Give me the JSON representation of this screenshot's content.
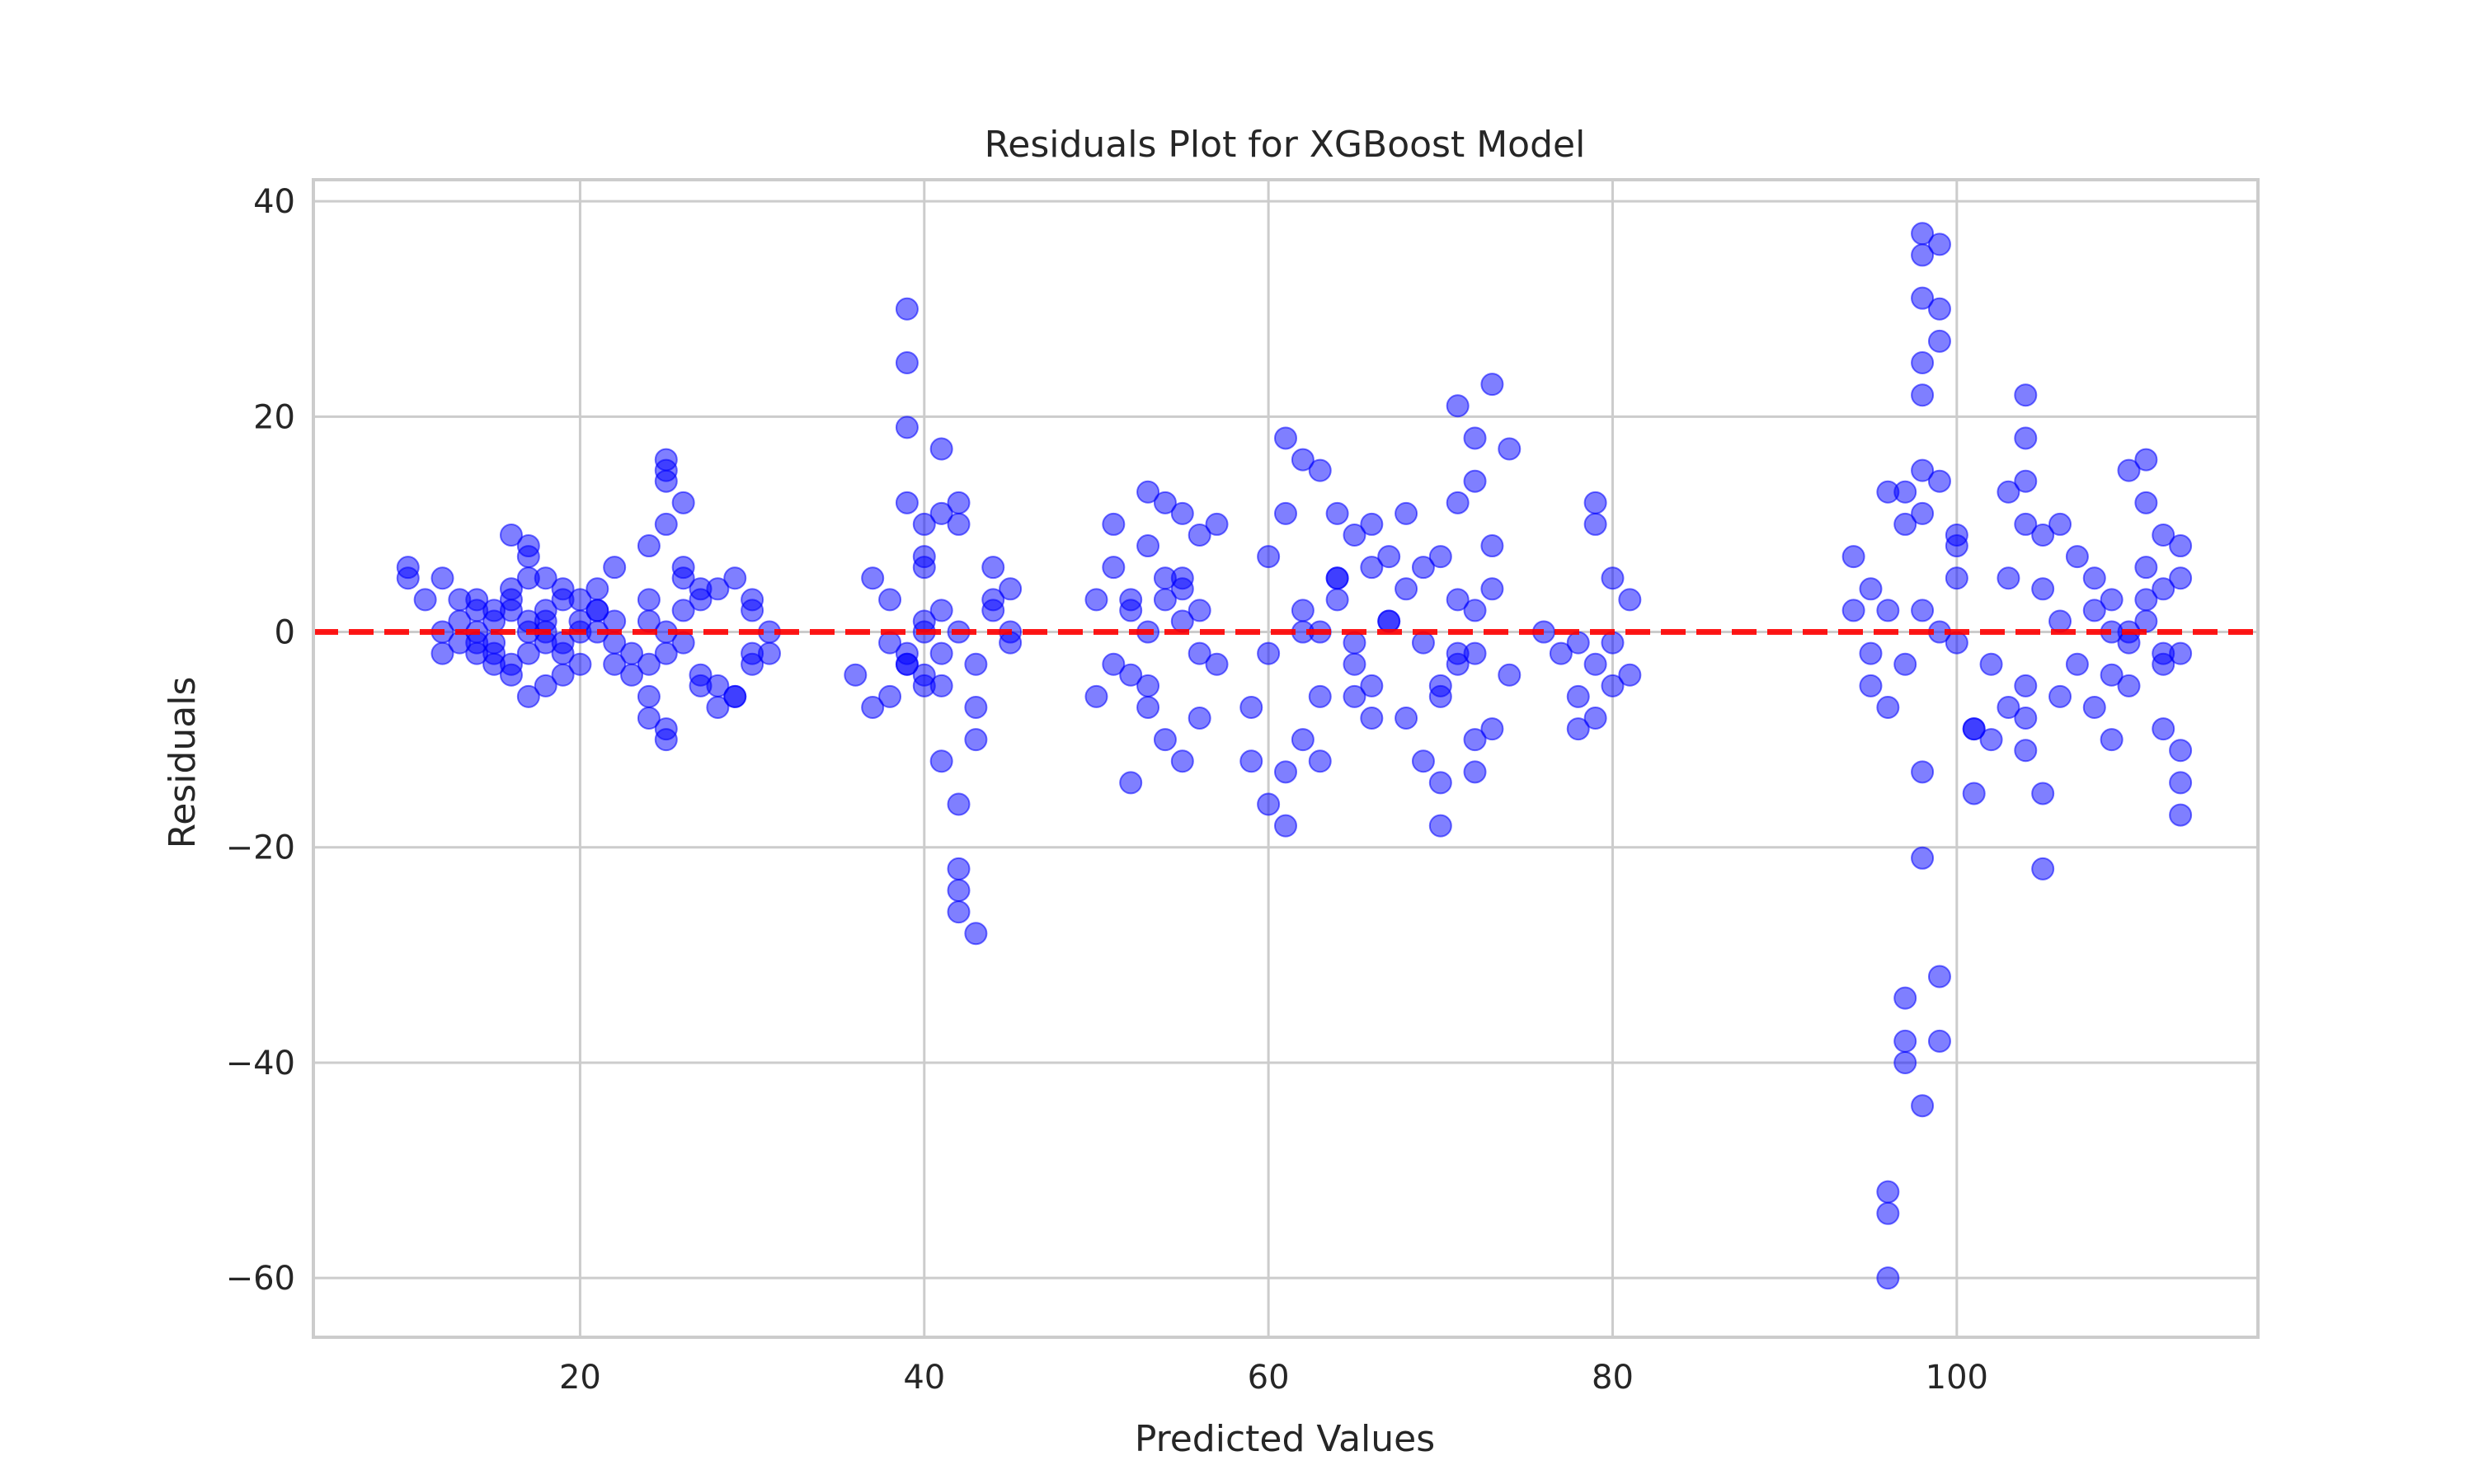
{
  "chart_data": {
    "type": "scatter",
    "title": "Residuals Plot for XGBoost Model",
    "xlabel": "Predicted Values",
    "ylabel": "Residuals",
    "xlim": [
      4.5,
      117.5
    ],
    "ylim": [
      -65.5,
      42
    ],
    "xticks": [
      20,
      40,
      60,
      80,
      100
    ],
    "yticks": [
      -60,
      -40,
      -20,
      0,
      20,
      40
    ],
    "xtick_labels": [
      "20",
      "40",
      "60",
      "80",
      "100"
    ],
    "ytick_labels": [
      "−60",
      "−40",
      "−20",
      "0",
      "20",
      "40"
    ],
    "grid": true,
    "reference_line": {
      "y": 0,
      "color": "#ff0000",
      "style": "dashed"
    },
    "point_color": "#0000ff",
    "point_alpha": 0.5,
    "series": [
      {
        "x": [
          10.0,
          10.0,
          11.0,
          12.0,
          12.0,
          13.0,
          14.0,
          15.0,
          12.0,
          13.0,
          14.0,
          15.0,
          16.0,
          16.0,
          17.0,
          17.0,
          17.0,
          18.0,
          18.0,
          19.0,
          20.0,
          21.0,
          22.0,
          22.0,
          23.0,
          13.0,
          14.0,
          15.0,
          16.0,
          17.0,
          18.0,
          19.0,
          20.0,
          21.0,
          22.0,
          23.0,
          14.0,
          15.0,
          16.0,
          17.0,
          18.0,
          19.0,
          20.0,
          21.0,
          15.0,
          16.0,
          17.0,
          18.0,
          19.0,
          20.0,
          14.0,
          16.0,
          17.0,
          18.0,
          19.0,
          21.0,
          22.0,
          24.0,
          24.0,
          25.0,
          25.0,
          26.0,
          26.0,
          24.0,
          25.0,
          26.0,
          27.0,
          28.0,
          29.0,
          30.0,
          24.0,
          25.0,
          26.0,
          27.0,
          28.0,
          29.0,
          30.0,
          31.0,
          25.0,
          27.0,
          29.0,
          30.0,
          31.0,
          24.0,
          25.0,
          28.0,
          30.0,
          25.0,
          26.0,
          27.0,
          24.0,
          25.0,
          36.0,
          37.0,
          37.0,
          38.0,
          38.0,
          39.0,
          39.0,
          39.0,
          39.0,
          39.0,
          40.0,
          40.0,
          40.0,
          40.0,
          41.0,
          41.0,
          41.0,
          41.0,
          42.0,
          42.0,
          42.0,
          42.0,
          42.0,
          42.0,
          43.0,
          43.0,
          43.0,
          44.0,
          44.0,
          44.0,
          45.0,
          45.0,
          45.0,
          39.0,
          40.0,
          41.0,
          39.0,
          40.0,
          38.0,
          40.0,
          42.0,
          43.0,
          41.0,
          50.0,
          50.0,
          51.0,
          51.0,
          51.0,
          52.0,
          52.0,
          52.0,
          53.0,
          53.0,
          53.0,
          54.0,
          54.0,
          54.0,
          55.0,
          55.0,
          55.0,
          56.0,
          56.0,
          56.0,
          57.0,
          52.0,
          53.0,
          54.0,
          55.0,
          56.0,
          53.0,
          55.0,
          57.0,
          59.0,
          59.0,
          60.0,
          60.0,
          60.0,
          61.0,
          61.0,
          61.0,
          61.0,
          62.0,
          62.0,
          62.0,
          63.0,
          63.0,
          63.0,
          64.0,
          64.0,
          64.0,
          65.0,
          65.0,
          65.0,
          66.0,
          66.0,
          66.0,
          67.0,
          67.0,
          68.0,
          68.0,
          69.0,
          69.0,
          69.0,
          70.0,
          70.0,
          70.0,
          70.0,
          71.0,
          71.0,
          71.0,
          72.0,
          72.0,
          72.0,
          73.0,
          73.0,
          73.0,
          74.0,
          74.0,
          71.0,
          72.0,
          73.0,
          70.0,
          71.0,
          72.0,
          63.0,
          64.0,
          66.0,
          67.0,
          62.0,
          65.0,
          68.0,
          72.0,
          76.0,
          77.0,
          78.0,
          78.0,
          79.0,
          79.0,
          79.0,
          80.0,
          80.0,
          81.0,
          81.0,
          78.0,
          80.0,
          79.0,
          94.0,
          94.0,
          95.0,
          95.0,
          95.0,
          96.0,
          96.0,
          96.0,
          96.0,
          96.0,
          96.0,
          97.0,
          97.0,
          97.0,
          97.0,
          97.0,
          98.0,
          98.0,
          98.0,
          98.0,
          98.0,
          98.0,
          98.0,
          98.0,
          98.0,
          98.0,
          98.0,
          99.0,
          99.0,
          99.0,
          99.0,
          99.0,
          99.0,
          100.0,
          100.0,
          100.0,
          100.0,
          101.0,
          101.0,
          102.0,
          102.0,
          103.0,
          103.0,
          103.0,
          104.0,
          104.0,
          104.0,
          104.0,
          104.0,
          104.0,
          105.0,
          105.0,
          105.0,
          105.0,
          106.0,
          106.0,
          106.0,
          107.0,
          107.0,
          108.0,
          108.0,
          108.0,
          109.0,
          109.0,
          109.0,
          110.0,
          110.0,
          110.0,
          111.0,
          111.0,
          111.0,
          111.0,
          112.0,
          112.0,
          112.0,
          112.0,
          113.0,
          113.0,
          113.0,
          113.0,
          113.0,
          110.0,
          111.0,
          112.0,
          113.0,
          97.0,
          99.0,
          101.0,
          104.0,
          109.0
        ],
        "y": [
          6.0,
          5.0,
          3.0,
          5.0,
          -2.0,
          3.0,
          2.0,
          1.0,
          0.0,
          -1.0,
          -2.0,
          -3.0,
          -4.0,
          9.0,
          8.0,
          7.0,
          -6.0,
          5.0,
          -5.0,
          4.0,
          3.0,
          2.0,
          6.0,
          -3.0,
          -4.0,
          1.0,
          0.0,
          -1.0,
          2.0,
          1.0,
          0.0,
          -1.0,
          1.0,
          0.0,
          1.0,
          -2.0,
          -1.0,
          2.0,
          3.0,
          -2.0,
          2.0,
          3.0,
          -3.0,
          2.0,
          -2.0,
          -3.0,
          0.0,
          -1.0,
          -2.0,
          0.0,
          3.0,
          4.0,
          5.0,
          1.0,
          -4.0,
          4.0,
          -1.0,
          3.0,
          -8.0,
          16.0,
          10.0,
          6.0,
          5.0,
          1.0,
          0.0,
          2.0,
          3.0,
          4.0,
          5.0,
          3.0,
          -3.0,
          -2.0,
          -1.0,
          -4.0,
          -5.0,
          -6.0,
          -3.0,
          -2.0,
          14.0,
          -5.0,
          -6.0,
          -2.0,
          0.0,
          -6.0,
          -9.0,
          -7.0,
          2.0,
          15.0,
          12.0,
          4.0,
          8.0,
          -10.0,
          -4.0,
          -7.0,
          5.0,
          3.0,
          -6.0,
          30.0,
          25.0,
          19.0,
          12.0,
          -3.0,
          10.0,
          6.0,
          0.0,
          -5.0,
          17.0,
          -12.0,
          11.0,
          -5.0,
          -16.0,
          12.0,
          10.0,
          -22.0,
          -24.0,
          -26.0,
          -28.0,
          -7.0,
          -10.0,
          2.0,
          6.0,
          3.0,
          -1.0,
          4.0,
          0.0,
          -3.0,
          7.0,
          2.0,
          -2.0,
          1.0,
          -1.0,
          -4.0,
          0.0,
          -3.0,
          -2.0,
          3.0,
          -6.0,
          -3.0,
          10.0,
          6.0,
          3.0,
          -14.0,
          2.0,
          13.0,
          8.0,
          -7.0,
          12.0,
          -10.0,
          5.0,
          11.0,
          -12.0,
          4.0,
          9.0,
          -8.0,
          2.0,
          10.0,
          -4.0,
          0.0,
          3.0,
          5.0,
          -2.0,
          -5.0,
          1.0,
          -3.0,
          -7.0,
          -12.0,
          7.0,
          -2.0,
          -16.0,
          -13.0,
          18.0,
          11.0,
          -18.0,
          16.0,
          0.0,
          -10.0,
          -6.0,
          15.0,
          -12.0,
          5.0,
          11.0,
          3.0,
          -6.0,
          9.0,
          -3.0,
          6.0,
          10.0,
          -5.0,
          1.0,
          7.0,
          -8.0,
          11.0,
          6.0,
          -12.0,
          -1.0,
          -14.0,
          7.0,
          -18.0,
          -6.0,
          21.0,
          12.0,
          -3.0,
          -13.0,
          18.0,
          14.0,
          -9.0,
          23.0,
          8.0,
          -4.0,
          17.0,
          3.0,
          -10.0,
          4.0,
          -5.0,
          -2.0,
          2.0,
          0.0,
          5.0,
          -8.0,
          1.0,
          2.0,
          -1.0,
          4.0,
          -2.0,
          0.0,
          -2.0,
          -1.0,
          -6.0,
          12.0,
          -8.0,
          10.0,
          5.0,
          -1.0,
          3.0,
          -4.0,
          -9.0,
          -5.0,
          -3.0,
          2.0,
          7.0,
          -2.0,
          4.0,
          -5.0,
          13.0,
          2.0,
          -7.0,
          -54.0,
          -60.0,
          -52.0,
          -3.0,
          13.0,
          -34.0,
          -38.0,
          10.0,
          2.0,
          -44.0,
          37.0,
          35.0,
          31.0,
          25.0,
          22.0,
          15.0,
          11.0,
          -13.0,
          -21.0,
          -32.0,
          -38.0,
          36.0,
          30.0,
          27.0,
          14.0,
          9.0,
          -1.0,
          8.0,
          5.0,
          -9.0,
          -15.0,
          -3.0,
          -10.0,
          5.0,
          13.0,
          -7.0,
          -5.0,
          10.0,
          22.0,
          18.0,
          14.0,
          -11.0,
          -15.0,
          -22.0,
          9.0,
          4.0,
          -6.0,
          1.0,
          10.0,
          7.0,
          -3.0,
          5.0,
          2.0,
          -7.0,
          3.0,
          -4.0,
          -10.0,
          15.0,
          -1.0,
          -5.0,
          6.0,
          16.0,
          12.0,
          1.0,
          9.0,
          4.0,
          -3.0,
          -9.0,
          5.0,
          -2.0,
          -11.0,
          -14.0,
          -17.0,
          0.0,
          3.0,
          -2.0,
          8.0,
          -40.0,
          0.0,
          -9.0,
          -8.0,
          0.0
        ]
      }
    ]
  }
}
